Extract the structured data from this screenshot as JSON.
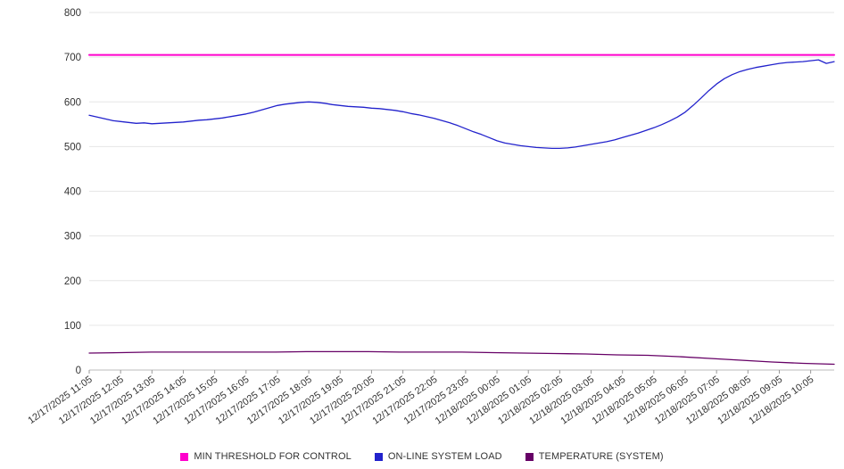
{
  "chart_data": {
    "type": "line",
    "title": "",
    "grid": true,
    "legend_position": "bottom",
    "y_axis": {
      "min": 0,
      "max": 800,
      "ticks": [
        0,
        100,
        200,
        300,
        400,
        500,
        600,
        700,
        800
      ]
    },
    "x_hours_span": 23.75,
    "categories": [
      "12/17/2025 11:05",
      "12/17/2025 12:05",
      "12/17/2025 13:05",
      "12/17/2025 14:05",
      "12/17/2025 15:05",
      "12/17/2025 16:05",
      "12/17/2025 17:05",
      "12/17/2025 18:05",
      "12/17/2025 19:05",
      "12/17/2025 20:05",
      "12/17/2025 21:05",
      "12/17/2025 22:05",
      "12/17/2025 23:05",
      "12/18/2025 00:05",
      "12/18/2025 01:05",
      "12/18/2025 02:05",
      "12/18/2025 03:05",
      "12/18/2025 04:05",
      "12/18/2025 05:05",
      "12/18/2025 06:05",
      "12/18/2025 07:05",
      "12/18/2025 08:05",
      "12/18/2025 09:05",
      "12/18/2025 10:05"
    ],
    "series": [
      {
        "name": "MIN THRESHOLD FOR CONTROL",
        "color": "#ff00cc",
        "kind": "constant",
        "value": 705,
        "stroke_width": 2
      },
      {
        "name": "ON-LINE SYSTEM LOAD",
        "color": "#2222cc",
        "kind": "values",
        "stroke_width": 1.3,
        "values": [
          570,
          566,
          562,
          558,
          556,
          554,
          552,
          553,
          551,
          552,
          553,
          554,
          555,
          557,
          559,
          560,
          562,
          564,
          567,
          570,
          573,
          577,
          582,
          587,
          592,
          595,
          597,
          599,
          600,
          599,
          597,
          594,
          592,
          590,
          589,
          588,
          586,
          585,
          583,
          581,
          578,
          574,
          571,
          567,
          563,
          558,
          553,
          547,
          540,
          533,
          527,
          520,
          513,
          508,
          505,
          502,
          500,
          498,
          497,
          496,
          496,
          497,
          499,
          502,
          505,
          508,
          511,
          515,
          520,
          525,
          530,
          536,
          542,
          549,
          557,
          566,
          577,
          592,
          608,
          625,
          640,
          652,
          661,
          668,
          673,
          677,
          680,
          683,
          686,
          688,
          689,
          690,
          692,
          694,
          686,
          690
        ]
      },
      {
        "name": "TEMPERATURE (SYSTEM)",
        "color": "#660066",
        "kind": "values",
        "stroke_width": 1.3,
        "values": [
          38,
          39,
          40,
          40,
          40,
          40,
          40,
          41,
          41,
          41,
          40,
          40,
          40,
          39,
          38,
          37,
          36,
          34,
          33,
          30,
          26,
          22,
          18,
          15,
          13
        ]
      }
    ],
    "legend": [
      {
        "label": "MIN THRESHOLD FOR CONTROL",
        "color": "#ff00cc"
      },
      {
        "label": "ON-LINE SYSTEM LOAD",
        "color": "#2222cc"
      },
      {
        "label": "TEMPERATURE (SYSTEM)",
        "color": "#660066"
      }
    ]
  }
}
